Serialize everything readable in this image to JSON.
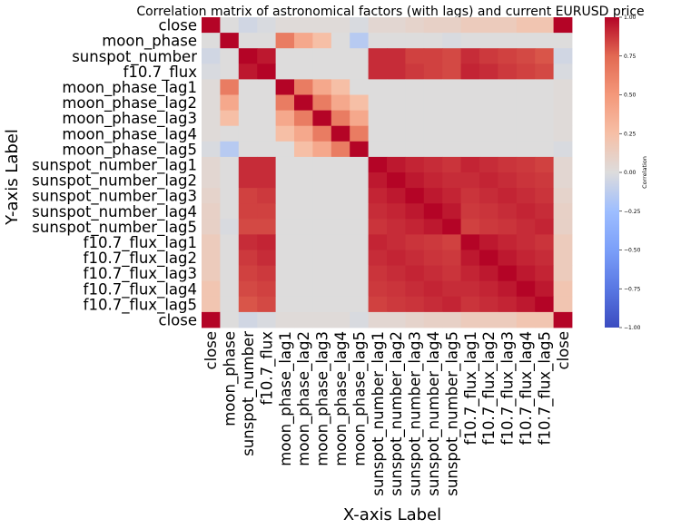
{
  "chart_data": {
    "type": "heatmap",
    "title": "Correlation matrix of astronomical factors (with lags) and current EURUSD price",
    "xlabel": "X-axis Label",
    "ylabel": "Y-axis Label",
    "colorbar_label": "Correlation",
    "colorbar_ticks": [
      "1.00",
      "0.75",
      "0.50",
      "0.25",
      "0.00",
      "−0.25",
      "−0.50",
      "−0.75",
      "−1.00"
    ],
    "colorbar_tick_values": [
      1.0,
      0.75,
      0.5,
      0.25,
      0.0,
      -0.25,
      -0.5,
      -0.75,
      -1.0
    ],
    "colormap": "coolwarm",
    "vmin": -1.0,
    "vmax": 1.0,
    "x_labels": [
      "close",
      "moon_phase",
      "sunspot_number",
      "f10.7_flux",
      "moon_phase_lag1",
      "moon_phase_lag2",
      "moon_phase_lag3",
      "moon_phase_lag4",
      "moon_phase_lag5",
      "sunspot_number_lag1",
      "sunspot_number_lag2",
      "sunspot_number_lag3",
      "sunspot_number_lag4",
      "sunspot_number_lag5",
      "f10.7_flux_lag1",
      "f10.7_flux_lag2",
      "f10.7_flux_lag3",
      "f10.7_flux_lag4",
      "f10.7_flux_lag5",
      "close"
    ],
    "y_labels": [
      "close",
      "moon_phase",
      "sunspot_number",
      "f10.7_flux",
      "moon_phase_lag1",
      "moon_phase_lag2",
      "moon_phase_lag3",
      "moon_phase_lag4",
      "moon_phase_lag5",
      "sunspot_number_lag1",
      "sunspot_number_lag2",
      "sunspot_number_lag3",
      "sunspot_number_lag4",
      "sunspot_number_lag5",
      "f10.7_flux_lag1",
      "f10.7_flux_lag2",
      "f10.7_flux_lag3",
      "f10.7_flux_lag4",
      "f10.7_flux_lag5",
      "close"
    ],
    "values": [
      [
        1.0,
        0.0,
        -0.05,
        -0.02,
        0.02,
        0.02,
        0.02,
        0.02,
        -0.02,
        0.05,
        0.05,
        0.08,
        0.1,
        0.1,
        0.15,
        0.15,
        0.15,
        0.2,
        0.2,
        1.0
      ],
      [
        0.0,
        1.0,
        0.0,
        0.0,
        0.65,
        0.4,
        0.25,
        0.0,
        -0.15,
        0.0,
        0.0,
        0.0,
        0.0,
        -0.02,
        0.0,
        0.0,
        0.0,
        0.0,
        0.0,
        0.0
      ],
      [
        -0.05,
        0.0,
        1.0,
        0.95,
        0.0,
        0.0,
        0.0,
        0.0,
        0.0,
        0.9,
        0.9,
        0.85,
        0.85,
        0.83,
        0.9,
        0.87,
        0.85,
        0.83,
        0.8,
        -0.05
      ],
      [
        -0.02,
        0.0,
        0.95,
        1.0,
        0.0,
        0.0,
        0.0,
        0.0,
        0.0,
        0.9,
        0.9,
        0.87,
        0.85,
        0.83,
        0.92,
        0.9,
        0.87,
        0.85,
        0.83,
        -0.02
      ],
      [
        0.02,
        0.65,
        0.0,
        0.0,
        1.0,
        0.65,
        0.4,
        0.25,
        0.0,
        0.0,
        0.0,
        0.0,
        0.0,
        0.0,
        0.0,
        0.0,
        0.0,
        0.0,
        0.0,
        0.02
      ],
      [
        0.02,
        0.4,
        0.0,
        0.0,
        0.65,
        1.0,
        0.65,
        0.4,
        0.25,
        0.0,
        0.0,
        0.0,
        0.0,
        0.0,
        0.0,
        0.0,
        0.0,
        0.0,
        0.0,
        0.02
      ],
      [
        0.02,
        0.25,
        0.0,
        0.0,
        0.4,
        0.65,
        1.0,
        0.65,
        0.4,
        0.0,
        0.0,
        0.0,
        0.0,
        0.0,
        0.0,
        0.0,
        0.0,
        0.0,
        0.0,
        0.02
      ],
      [
        0.02,
        0.0,
        0.0,
        0.0,
        0.25,
        0.4,
        0.65,
        1.0,
        0.65,
        0.0,
        0.0,
        0.0,
        0.0,
        0.0,
        0.0,
        0.0,
        0.0,
        0.0,
        0.0,
        0.02
      ],
      [
        -0.02,
        -0.15,
        0.0,
        0.0,
        0.0,
        0.25,
        0.4,
        0.65,
        1.0,
        0.0,
        0.0,
        0.0,
        0.0,
        0.0,
        0.0,
        0.0,
        0.0,
        0.0,
        0.0,
        -0.02
      ],
      [
        0.05,
        0.0,
        0.9,
        0.9,
        0.0,
        0.0,
        0.0,
        0.0,
        0.0,
        1.0,
        0.95,
        0.92,
        0.9,
        0.88,
        0.92,
        0.9,
        0.88,
        0.87,
        0.85,
        0.05
      ],
      [
        0.05,
        0.0,
        0.9,
        0.9,
        0.0,
        0.0,
        0.0,
        0.0,
        0.0,
        0.95,
        1.0,
        0.95,
        0.92,
        0.9,
        0.9,
        0.92,
        0.9,
        0.88,
        0.87,
        0.05
      ],
      [
        0.08,
        0.0,
        0.85,
        0.87,
        0.0,
        0.0,
        0.0,
        0.0,
        0.0,
        0.92,
        0.95,
        1.0,
        0.95,
        0.92,
        0.88,
        0.9,
        0.92,
        0.9,
        0.88,
        0.08
      ],
      [
        0.1,
        0.0,
        0.85,
        0.85,
        0.0,
        0.0,
        0.0,
        0.0,
        0.0,
        0.9,
        0.92,
        0.95,
        1.0,
        0.95,
        0.87,
        0.88,
        0.9,
        0.92,
        0.9,
        0.1
      ],
      [
        0.1,
        -0.02,
        0.83,
        0.83,
        0.0,
        0.0,
        0.0,
        0.0,
        0.0,
        0.88,
        0.9,
        0.92,
        0.95,
        1.0,
        0.85,
        0.87,
        0.88,
        0.9,
        0.92,
        0.1
      ],
      [
        0.15,
        0.0,
        0.9,
        0.92,
        0.0,
        0.0,
        0.0,
        0.0,
        0.0,
        0.92,
        0.9,
        0.88,
        0.87,
        0.85,
        1.0,
        0.95,
        0.92,
        0.9,
        0.88,
        0.15
      ],
      [
        0.15,
        0.0,
        0.87,
        0.9,
        0.0,
        0.0,
        0.0,
        0.0,
        0.0,
        0.9,
        0.92,
        0.9,
        0.88,
        0.87,
        0.95,
        1.0,
        0.95,
        0.92,
        0.9,
        0.15
      ],
      [
        0.15,
        0.0,
        0.85,
        0.87,
        0.0,
        0.0,
        0.0,
        0.0,
        0.0,
        0.88,
        0.9,
        0.92,
        0.9,
        0.88,
        0.92,
        0.95,
        1.0,
        0.95,
        0.92,
        0.15
      ],
      [
        0.2,
        0.0,
        0.83,
        0.85,
        0.0,
        0.0,
        0.0,
        0.0,
        0.0,
        0.87,
        0.88,
        0.9,
        0.92,
        0.9,
        0.9,
        0.92,
        0.95,
        1.0,
        0.95,
        0.2
      ],
      [
        0.2,
        0.0,
        0.8,
        0.83,
        0.0,
        0.0,
        0.0,
        0.0,
        0.0,
        0.85,
        0.87,
        0.88,
        0.9,
        0.92,
        0.88,
        0.9,
        0.92,
        0.95,
        1.0,
        0.2
      ],
      [
        1.0,
        0.0,
        -0.05,
        -0.02,
        0.02,
        0.02,
        0.02,
        0.02,
        -0.02,
        0.05,
        0.05,
        0.08,
        0.1,
        0.1,
        0.15,
        0.15,
        0.15,
        0.2,
        0.2,
        1.0
      ]
    ],
    "legend": "colorbar-right",
    "grid": false
  }
}
